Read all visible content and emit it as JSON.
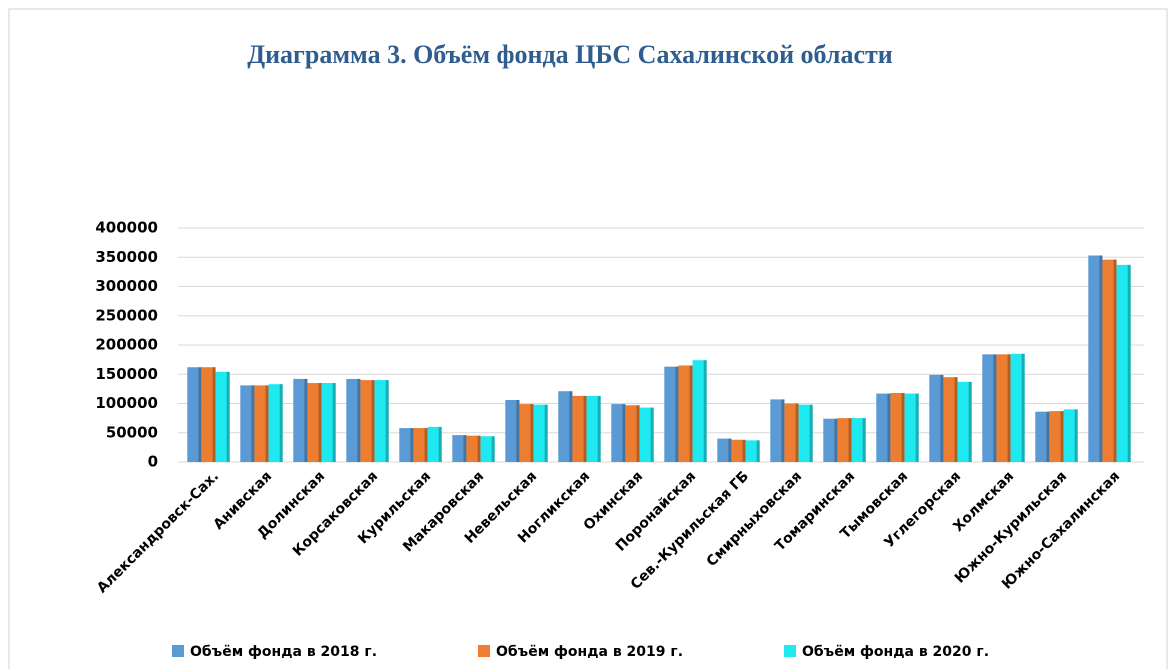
{
  "chart_data": {
    "type": "bar",
    "title": "Диаграмма 3. Объём фонда ЦБС Сахалинской области",
    "categories": [
      "Александровск-Сах.",
      "Анивская",
      "Долинская",
      "Корсаковская",
      "Курильская",
      "Макаровская",
      "Невельская",
      "Ногликская",
      "Охинская",
      "Поронайская",
      "Сев.-Курильская ГБ",
      "Смирныховская",
      "Томаринская",
      "Тымовская",
      "Углегорская",
      "Холмская",
      "Южно-Курильская",
      "Южно-Сахалинская"
    ],
    "series": [
      {
        "name": "Объём фонда в 2018 г.",
        "color": "#5b9bd5",
        "values": [
          162000,
          131000,
          142000,
          142000,
          58000,
          46000,
          106000,
          121000,
          99000,
          163000,
          40000,
          107000,
          74000,
          117000,
          149000,
          184000,
          86000,
          353000
        ]
      },
      {
        "name": "Объём фонда в 2019 г.",
        "color": "#ed7d31",
        "values": [
          162000,
          131000,
          135000,
          140000,
          58000,
          45000,
          99000,
          113000,
          97000,
          165000,
          38000,
          100000,
          75000,
          118000,
          145000,
          184000,
          87000,
          346000
        ]
      },
      {
        "name": "Объём фонда в 2020 г.",
        "color": "#1ee8f0",
        "values": [
          154000,
          133000,
          135000,
          140000,
          60000,
          44000,
          98000,
          113000,
          93000,
          174000,
          37000,
          98000,
          75000,
          117000,
          137000,
          185000,
          90000,
          337000
        ]
      }
    ],
    "ylim": [
      0,
      400000
    ],
    "yticks": [
      0,
      50000,
      100000,
      150000,
      200000,
      250000,
      300000,
      350000,
      400000
    ],
    "grid": true,
    "legend": "bottom"
  }
}
